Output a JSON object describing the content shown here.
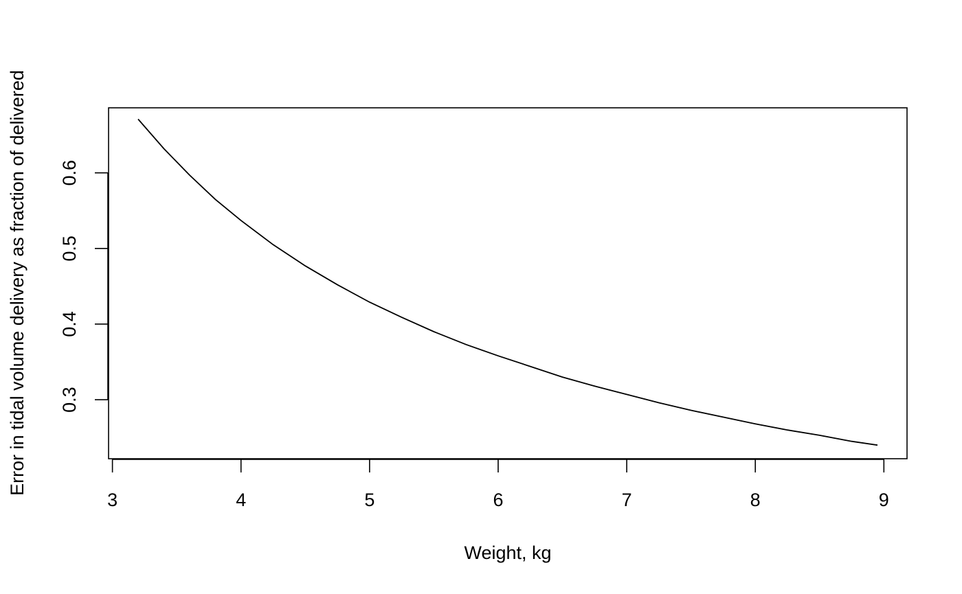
{
  "chart_data": {
    "type": "line",
    "title": "",
    "xlabel": "Weight, kg",
    "ylabel": "Error in tidal volume delivery as fraction of delivered",
    "xlim": [
      2.97,
      9.18
    ],
    "ylim": [
      0.222,
      0.686
    ],
    "xticks": [
      "3",
      "4",
      "5",
      "6",
      "7",
      "8",
      "9"
    ],
    "yticks": [
      "0.3",
      "0.4",
      "0.5",
      "0.6"
    ],
    "grid": false,
    "legend": "none",
    "line_color": "#000000",
    "series": [
      {
        "x": [
          3.2,
          3.4,
          3.6,
          3.8,
          4.0,
          4.25,
          4.5,
          4.75,
          5.0,
          5.25,
          5.5,
          5.75,
          6.0,
          6.25,
          6.5,
          6.75,
          7.0,
          7.25,
          7.5,
          7.75,
          8.0,
          8.25,
          8.5,
          8.75,
          8.95
        ],
        "y": [
          0.671,
          0.632,
          0.597,
          0.565,
          0.537,
          0.505,
          0.477,
          0.452,
          0.429,
          0.409,
          0.39,
          0.373,
          0.358,
          0.344,
          0.33,
          0.318,
          0.307,
          0.296,
          0.286,
          0.277,
          0.268,
          0.26,
          0.253,
          0.245,
          0.24
        ]
      }
    ]
  }
}
